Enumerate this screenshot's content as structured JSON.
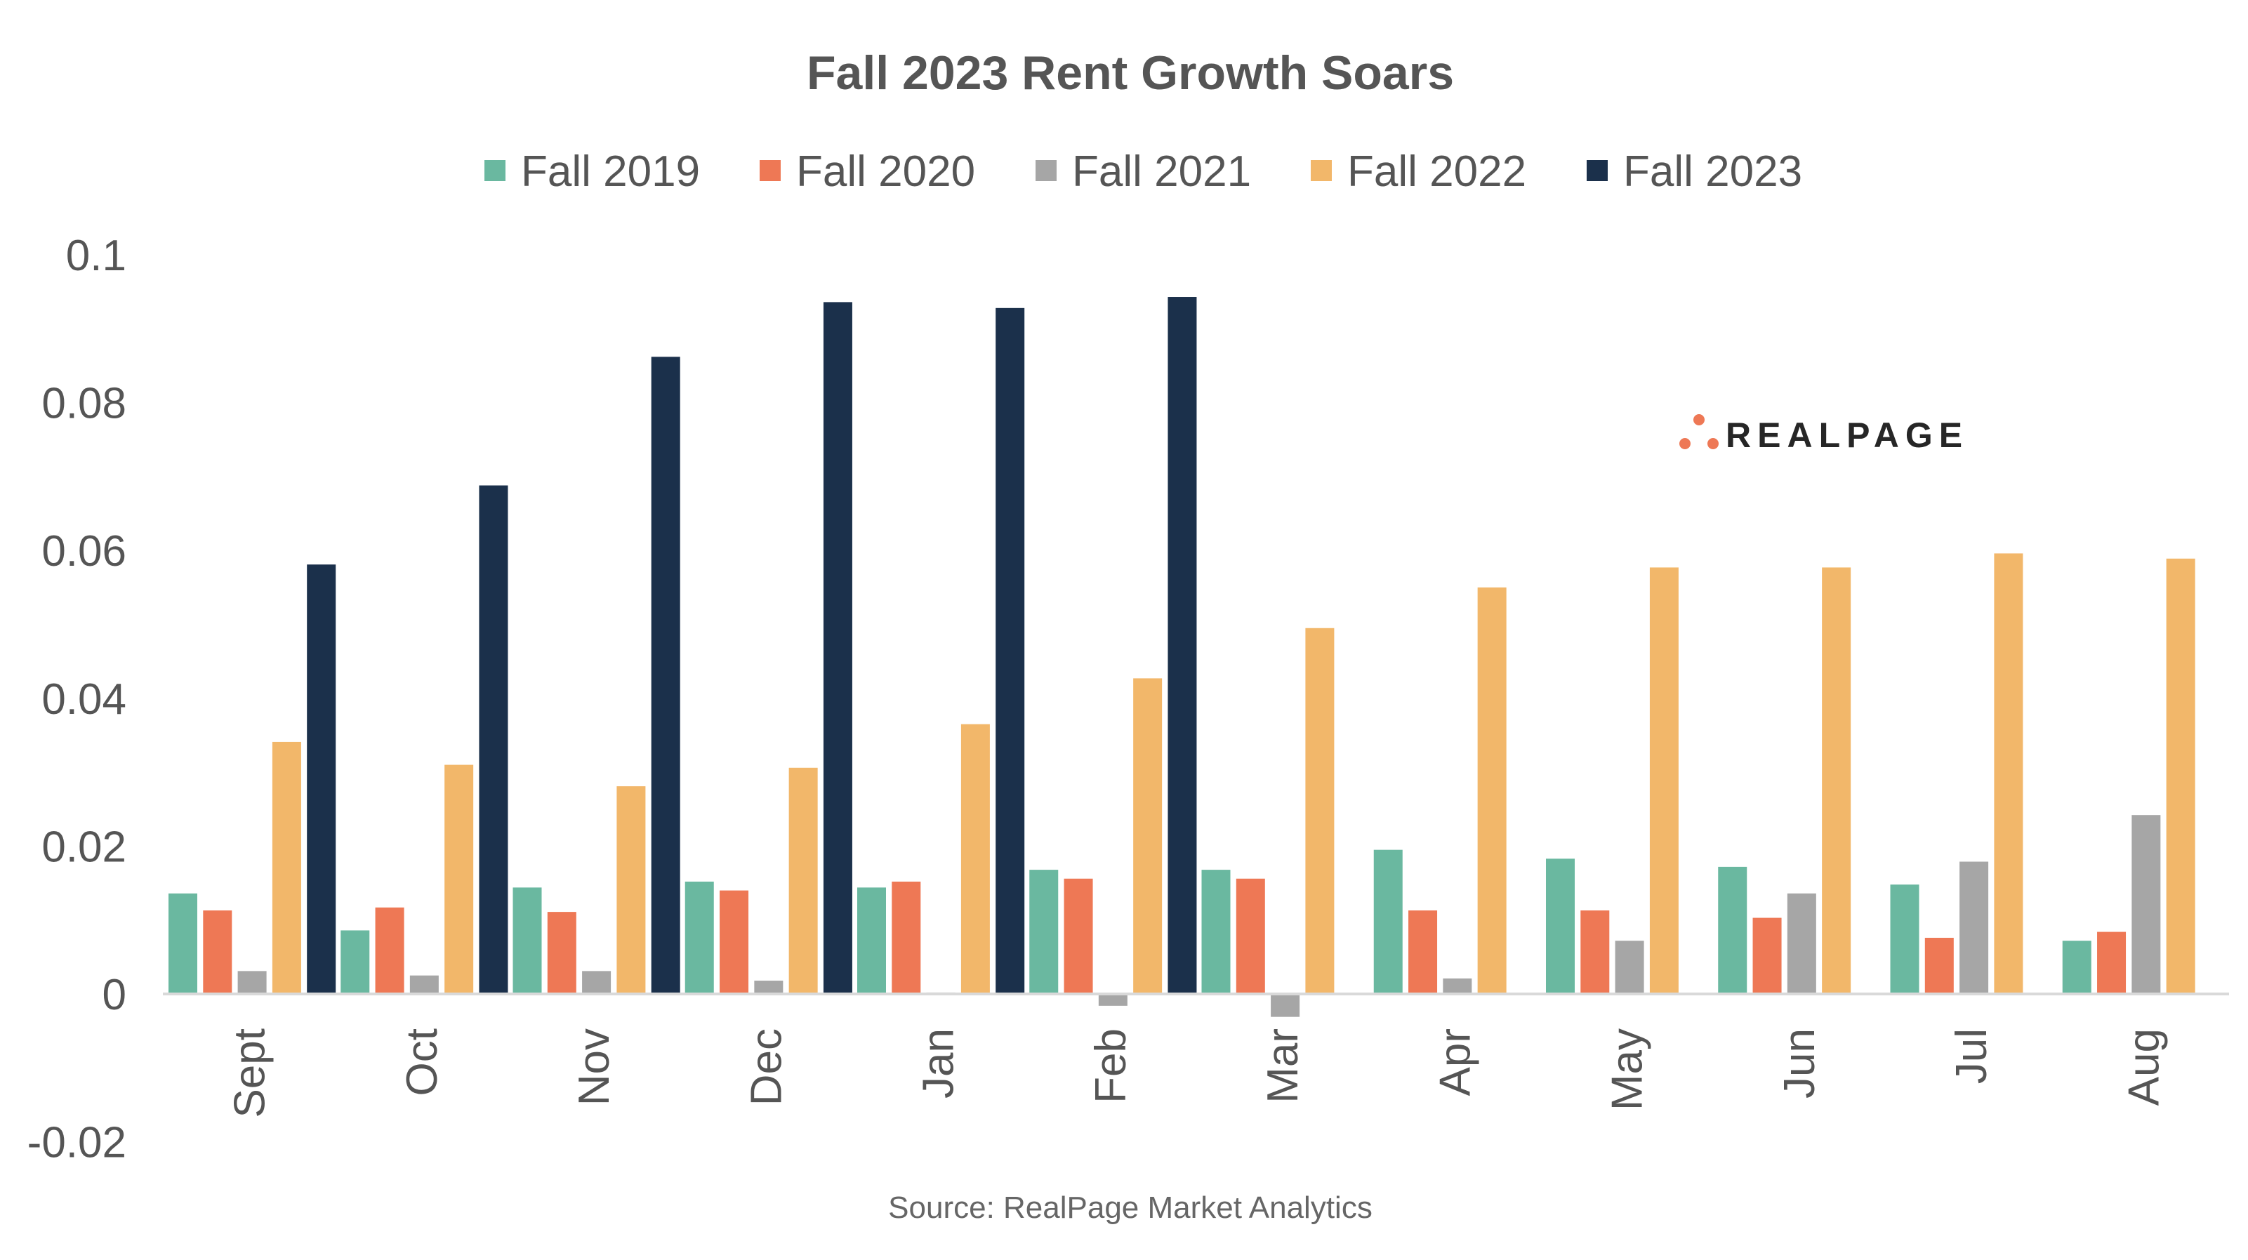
{
  "chart_data": {
    "type": "bar",
    "title": "Fall 2023 Rent Growth Soars",
    "source": "Source: RealPage Market Analytics",
    "logo_text": "REALPAGE",
    "xlabel": "",
    "ylabel": "",
    "ylim": [
      -0.02,
      0.1
    ],
    "yticks": [
      "0.1",
      "0.08",
      "0.06",
      "0.04",
      "0.02",
      "0",
      "-0.02"
    ],
    "ytick_values": [
      0.1,
      0.08,
      0.06,
      0.04,
      0.02,
      0,
      -0.02
    ],
    "grid": false,
    "legend_position": "top",
    "categories": [
      "Sept",
      "Oct",
      "Nov",
      "Dec",
      "Jan",
      "Feb",
      "Mar",
      "Apr",
      "May",
      "Jun",
      "Jul",
      "Aug"
    ],
    "series": [
      {
        "name": "Fall 2019",
        "color": "#6AB8A0",
        "values": [
          0.0136,
          0.0086,
          0.0144,
          0.0152,
          0.0144,
          0.0168,
          0.0168,
          0.0195,
          0.0183,
          0.0172,
          0.0148,
          0.0072
        ]
      },
      {
        "name": "Fall 2020",
        "color": "#EE7855",
        "values": [
          0.0113,
          0.0117,
          0.0111,
          0.014,
          0.0152,
          0.0156,
          0.0156,
          0.0113,
          0.0113,
          0.0103,
          0.0076,
          0.0084
        ]
      },
      {
        "name": "Fall 2021",
        "color": "#A6A6A6",
        "values": [
          0.0031,
          0.0025,
          0.0031,
          0.0018,
          0.0002,
          -0.0016,
          -0.0031,
          0.0021,
          0.0072,
          0.0136,
          0.0179,
          0.0242
        ]
      },
      {
        "name": "Fall 2022",
        "color": "#F2B76A",
        "values": [
          0.0341,
          0.031,
          0.0281,
          0.0306,
          0.0365,
          0.0427,
          0.0495,
          0.055,
          0.0577,
          0.0577,
          0.0596,
          0.0589
        ]
      },
      {
        "name": "Fall 2023",
        "color": "#1B304B",
        "values": [
          0.0581,
          0.0688,
          0.0862,
          0.0936,
          0.0928,
          0.0943,
          null,
          null,
          null,
          null,
          null,
          null
        ]
      }
    ],
    "logo_color": "#EE7855"
  }
}
